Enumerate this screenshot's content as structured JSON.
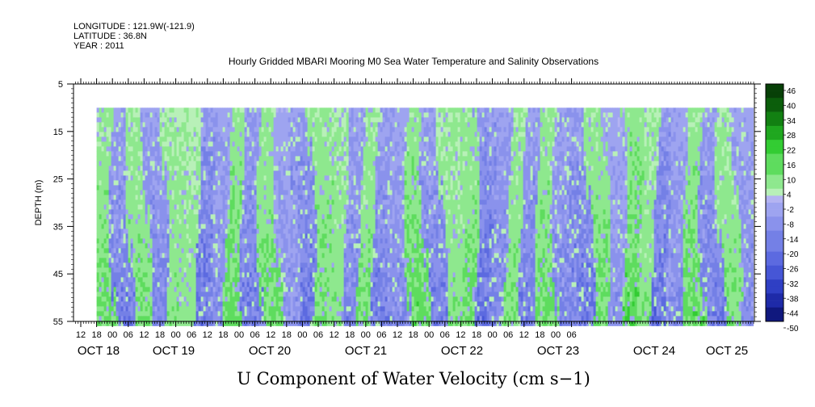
{
  "header": {
    "longitude": "LONGITUDE : 121.9W(-121.9)",
    "latitude": "LATITUDE : 36.8N",
    "year": "YEAR : 2011"
  },
  "chart_data": {
    "type": "heatmap",
    "title": "Hourly Gridded MBARI Mooring M0 Sea Water Temperature and Salinity Observations",
    "xlabel": "U Component of Water Velocity (cm s−1)",
    "ylabel": "DEPTH (m)",
    "y_ticks": [
      5,
      15,
      25,
      35,
      45,
      55
    ],
    "ylim": [
      55,
      5
    ],
    "data_depth_range": [
      10,
      55
    ],
    "x_hour_ticks": [
      "12",
      "18",
      "00",
      "06",
      "12",
      "18",
      "00",
      "06",
      "12",
      "18",
      "00",
      "06",
      "12",
      "18",
      "00",
      "06",
      "12",
      "18",
      "00",
      "06",
      "12",
      "18",
      "00",
      "06",
      "12",
      "18",
      "00",
      "06",
      "12",
      "18",
      "00",
      "06"
    ],
    "x_day_labels": [
      "OCT 18",
      "OCT 19",
      "OCT 20",
      "OCT 21",
      "OCT 22",
      "OCT 23",
      "OCT 24",
      "OCT 25"
    ],
    "x_start": "OCT 18 09:00",
    "x_end": "OCT 25 12:00",
    "data_start": "OCT 18 18:00",
    "colorbar_labels": [
      "46",
      "40",
      "34",
      "28",
      "22",
      "16",
      "10",
      "4",
      "-2",
      "-8",
      "-14",
      "-20",
      "-26",
      "-32",
      "-38",
      "-44",
      "-50"
    ],
    "colorbar_range": [
      -50,
      52
    ],
    "colors": {
      "positive": [
        "#b8f0b8",
        "#8ee88e",
        "#5edc5e",
        "#33cc33",
        "#1fa71f",
        "#128012",
        "#0b5e0b",
        "#074007"
      ],
      "negative": [
        "#b4b4f2",
        "#9ea4f0",
        "#8a92ec",
        "#7480e6",
        "#5c6ae0",
        "#4656d6",
        "#2f3fc4",
        "#1e2aa8",
        "#10187e"
      ]
    },
    "band_signs": [
      1,
      -1,
      1,
      -1,
      1,
      1,
      -1,
      -1,
      1,
      -1,
      1,
      -1,
      -1,
      1,
      1,
      -1,
      1,
      -1,
      -1,
      1,
      -1,
      1,
      1,
      -1,
      -1,
      1,
      -1,
      1,
      -1,
      -1,
      1,
      -1,
      1,
      1,
      -1,
      -1,
      1,
      -1,
      1,
      -1
    ],
    "band_intensity": [
      0.5,
      0.6,
      0.45,
      0.55,
      0.4,
      0.35,
      0.7,
      0.5,
      0.55,
      0.6,
      0.5,
      0.45,
      0.65,
      0.5,
      0.4,
      0.55,
      0.45,
      0.6,
      0.5,
      0.55,
      0.6,
      0.4,
      0.5,
      0.7,
      0.55,
      0.45,
      0.6,
      0.5,
      0.55,
      0.65,
      0.5,
      0.45,
      0.6,
      0.4,
      0.7,
      0.5,
      0.55,
      0.6,
      0.45,
      0.5
    ]
  }
}
